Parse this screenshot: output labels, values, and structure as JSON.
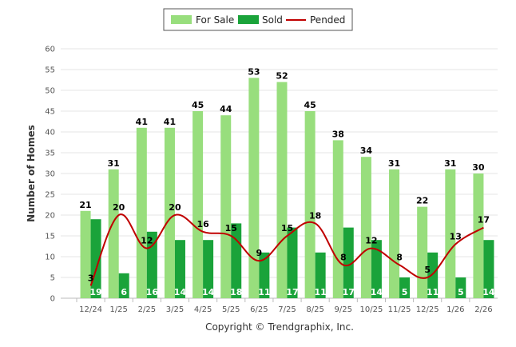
{
  "chart_data": {
    "type": "bar",
    "categories": [
      "12/24",
      "1/25",
      "2/25",
      "3/25",
      "4/25",
      "5/25",
      "6/25",
      "7/25",
      "8/25",
      "9/25",
      "10/25",
      "11/25",
      "12/25",
      "1/26",
      "2/26"
    ],
    "series": [
      {
        "name": "For Sale",
        "type": "bar",
        "color": "#98de7d",
        "values": [
          21,
          31,
          41,
          41,
          45,
          44,
          53,
          52,
          45,
          38,
          34,
          31,
          22,
          31,
          30
        ]
      },
      {
        "name": "Sold",
        "type": "bar",
        "color": "#1aa33a",
        "values": [
          19,
          6,
          16,
          14,
          14,
          18,
          11,
          17,
          11,
          17,
          14,
          5,
          11,
          5,
          14
        ]
      },
      {
        "name": "Pended",
        "type": "line",
        "color": "#c00000",
        "values": [
          3,
          20,
          12,
          20,
          16,
          15,
          9,
          15,
          18,
          8,
          12,
          8,
          5,
          13,
          17
        ]
      }
    ],
    "ylabel": "Number of Homes",
    "xlabel": "",
    "ylim": [
      0,
      60
    ],
    "yticks": [
      0,
      5,
      10,
      15,
      20,
      25,
      30,
      35,
      40,
      45,
      50,
      55,
      60
    ],
    "grid": true,
    "legend_position": "top-center"
  },
  "footer": {
    "copyright": "Copyright © Trendgraphix, Inc."
  }
}
